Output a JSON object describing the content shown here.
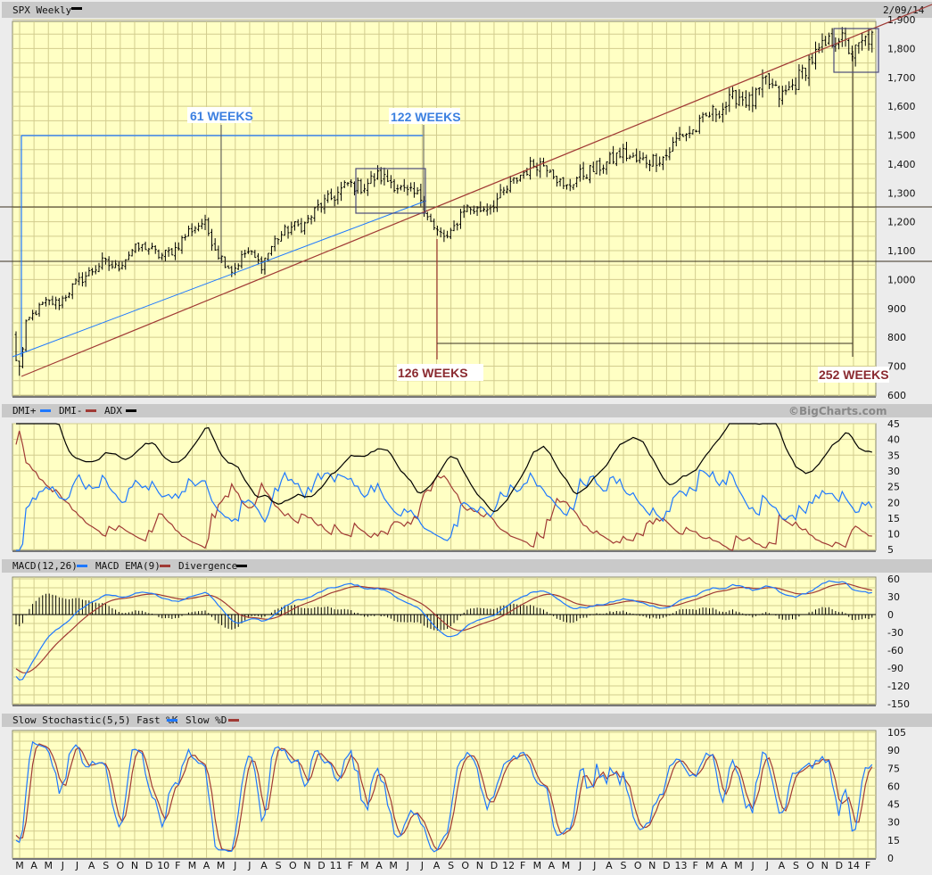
{
  "header": {
    "title": "SPX Weekly",
    "date": "2/09/14",
    "copyright": "©BigCharts.com"
  },
  "colors": {
    "plot_bg": "#ffffc4",
    "grid": "#d2cc8e",
    "blue": "#1e78ff",
    "red": "#a03a35",
    "black": "#000000",
    "header": "#c9c9c9"
  },
  "annotations": {
    "label_61": "61 WEEKS",
    "label_122": "122 WEEKS",
    "label_126": "126 WEEKS",
    "label_252": "252 WEEKS"
  },
  "panels": {
    "dmi": {
      "legend": [
        "DMI+",
        "DMI-",
        "ADX"
      ],
      "ticks": [
        "45",
        "40",
        "35",
        "30",
        "25",
        "20",
        "15",
        "10",
        "5"
      ]
    },
    "macd": {
      "legend": [
        "MACD(12,26)",
        "MACD EMA(9)",
        "Divergence"
      ],
      "ticks": [
        "60",
        "30",
        "0",
        "-30",
        "-60",
        "-90",
        "-120",
        "-150"
      ]
    },
    "stoch": {
      "legend": [
        "Slow Stochastic(5,5) Fast %K",
        "Slow %D"
      ],
      "ticks": [
        "105",
        "90",
        "75",
        "60",
        "45",
        "30",
        "15",
        "0"
      ]
    }
  },
  "chart_data": {
    "type": "ohlc",
    "symbol": "SPX",
    "interval": "weekly",
    "ylim": [
      600,
      1900
    ],
    "price_ticks": [
      "1,900",
      "1,800",
      "1,700",
      "1,600",
      "1,500",
      "1,400",
      "1,300",
      "1,200",
      "1,100",
      "1,000",
      "900",
      "800",
      "700",
      "600"
    ],
    "x_labels": [
      "M",
      "A",
      "M",
      "J",
      "J",
      "A",
      "S",
      "O",
      "N",
      "D",
      "10",
      "F",
      "M",
      "A",
      "M",
      "J",
      "J",
      "A",
      "S",
      "O",
      "N",
      "D",
      "11",
      "F",
      "M",
      "A",
      "M",
      "J",
      "J",
      "A",
      "S",
      "O",
      "N",
      "D",
      "12",
      "F",
      "M",
      "A",
      "M",
      "J",
      "J",
      "A",
      "S",
      "O",
      "N",
      "D",
      "13",
      "F",
      "M",
      "A",
      "M",
      "J",
      "J",
      "A",
      "S",
      "O",
      "N",
      "D",
      "14",
      "F"
    ],
    "monthly_close_approx": [
      780,
      870,
      920,
      920,
      980,
      1020,
      1060,
      1040,
      1100,
      1115,
      1080,
      1105,
      1170,
      1200,
      1090,
      1030,
      1100,
      1050,
      1140,
      1180,
      1190,
      1255,
      1285,
      1330,
      1320,
      1360,
      1340,
      1300,
      1290,
      1170,
      1140,
      1250,
      1240,
      1260,
      1310,
      1365,
      1405,
      1395,
      1310,
      1360,
      1380,
      1405,
      1440,
      1410,
      1415,
      1425,
      1500,
      1515,
      1570,
      1595,
      1640,
      1610,
      1690,
      1630,
      1680,
      1755,
      1805,
      1845,
      1780,
      1835
    ],
    "low_2009": 667,
    "high_2014": 1850
  }
}
